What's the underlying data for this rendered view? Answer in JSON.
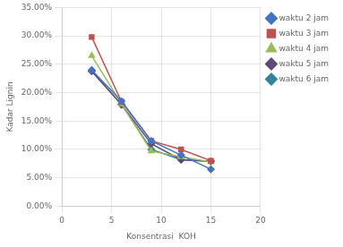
{
  "chart_data": {
    "type": "line",
    "xlabel": "Konsentrasi  KOH",
    "ylabel": "Kadar Lignin",
    "x": [
      3,
      6,
      9,
      12,
      15
    ],
    "series": [
      {
        "name": "waktu 2 jam",
        "color": "#4472C4",
        "marker": "diamond",
        "values": [
          0.24,
          0.185,
          0.115,
          0.09,
          0.065
        ]
      },
      {
        "name": "waktu 3 jam",
        "color": "#C0504D",
        "marker": "square",
        "values": [
          0.298,
          0.184,
          0.115,
          0.1,
          0.08
        ]
      },
      {
        "name": "waktu 4 jam",
        "color": "#9BBB59",
        "marker": "triangle",
        "values": [
          0.265,
          0.18,
          0.097,
          0.087,
          0.078
        ]
      },
      {
        "name": "waktu 5 jam",
        "color": "#604A7B",
        "marker": "diamond",
        "values": [
          0.238,
          0.179,
          0.11,
          0.082,
          0.079
        ]
      },
      {
        "name": "waktu 6 jam",
        "color": "#31849B",
        "marker": "diamond",
        "values": [
          0.238,
          0.179,
          0.1,
          0.082,
          0.079
        ]
      }
    ],
    "xlim": [
      0,
      20
    ],
    "xticks": [
      0,
      5,
      10,
      15,
      20
    ],
    "ylim": [
      0.0,
      0.35
    ],
    "yticks": [
      {
        "value": 0.0,
        "label": "0.00%"
      },
      {
        "value": 0.05,
        "label": "5.00%"
      },
      {
        "value": 0.1,
        "label": "10.00%"
      },
      {
        "value": 0.15,
        "label": "15.00%"
      },
      {
        "value": 0.2,
        "label": "20.00%"
      },
      {
        "value": 0.25,
        "label": "25.00%"
      },
      {
        "value": 0.3,
        "label": "30.00%"
      },
      {
        "value": 0.35,
        "label": "35.00%"
      }
    ],
    "grid": true,
    "legend": "right"
  }
}
